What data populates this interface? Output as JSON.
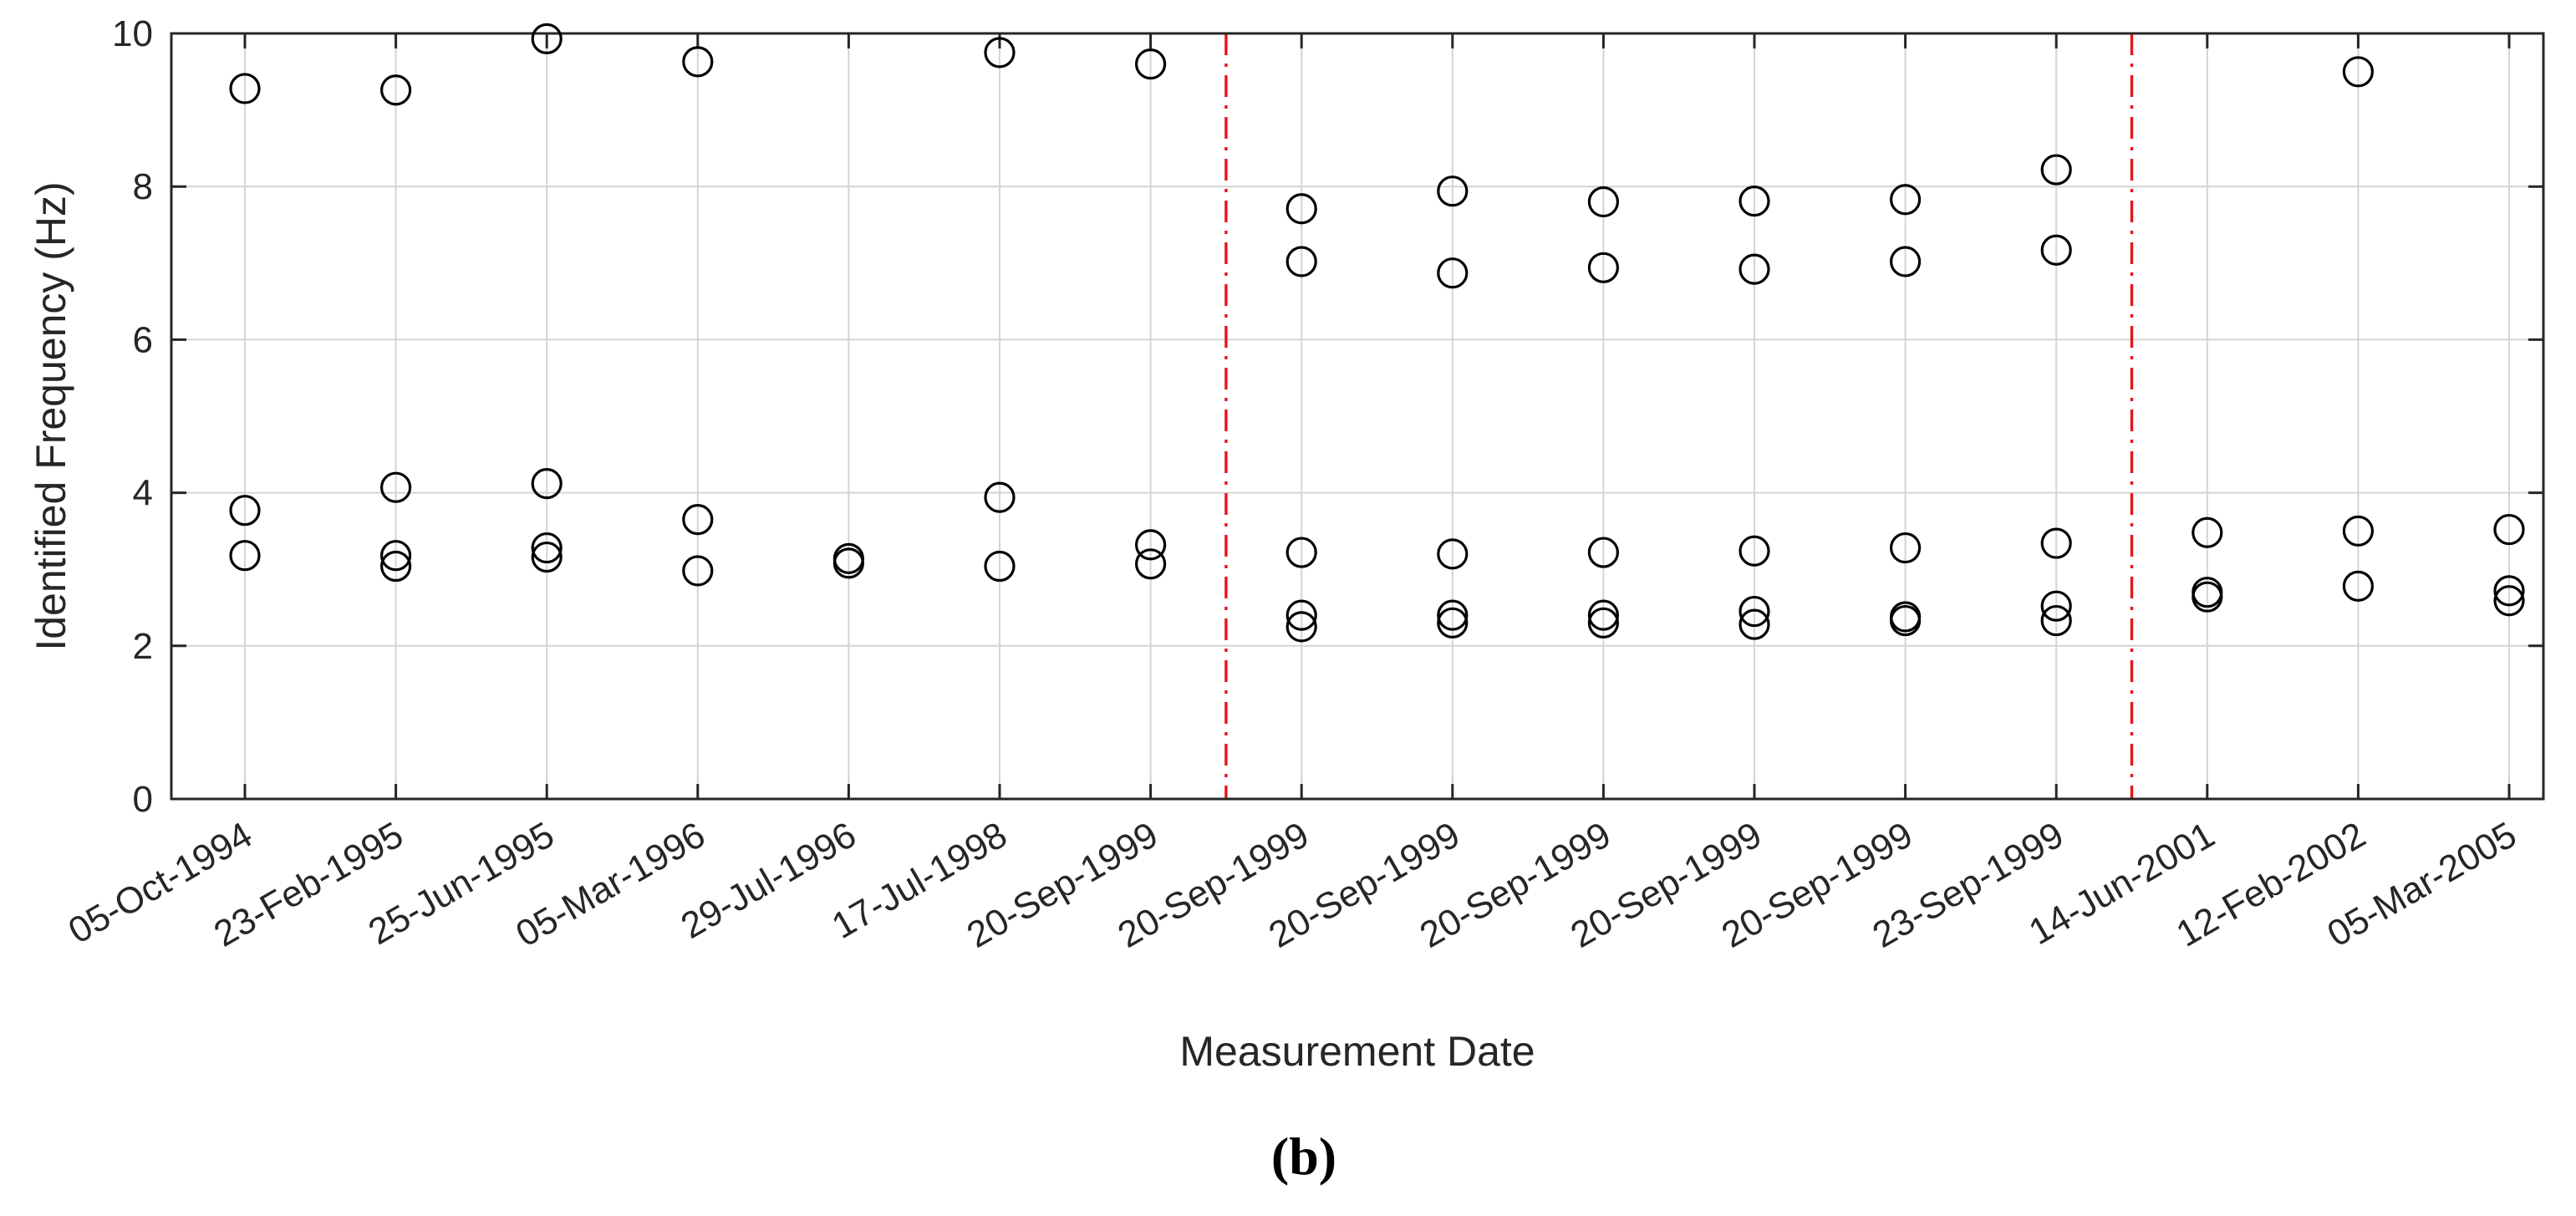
{
  "chart_data": {
    "type": "scatter",
    "panel_label": "(b)",
    "xlabel": "Measurement Date",
    "ylabel": "Identified Frequency (Hz)",
    "ylim": [
      0,
      10
    ],
    "yticks": [
      0,
      2,
      4,
      6,
      8,
      10
    ],
    "grid": true,
    "marker": "open-circle",
    "categories": [
      "05-Oct-1994",
      "23-Feb-1995",
      "25-Jun-1995",
      "05-Mar-1996",
      "29-Jul-1996",
      "17-Jul-1998",
      "20-Sep-1999",
      "20-Sep-1999",
      "20-Sep-1999",
      "20-Sep-1999",
      "20-Sep-1999",
      "20-Sep-1999",
      "23-Sep-1999",
      "14-Jun-2001",
      "12-Feb-2002",
      "05-Mar-2005"
    ],
    "points": [
      {
        "x": "05-Oct-1994",
        "y": [
          3.18,
          3.77,
          9.28
        ]
      },
      {
        "x": "23-Feb-1995",
        "y": [
          3.04,
          3.18,
          4.07,
          9.26
        ]
      },
      {
        "x": "25-Jun-1995",
        "y": [
          3.16,
          3.28,
          4.12,
          9.93
        ]
      },
      {
        "x": "05-Mar-1996",
        "y": [
          2.98,
          3.65,
          9.63
        ]
      },
      {
        "x": "29-Jul-1996",
        "y": [
          3.08,
          3.14
        ]
      },
      {
        "x": "17-Jul-1998",
        "y": [
          3.04,
          3.94,
          9.75
        ]
      },
      {
        "x": "20-Sep-1999",
        "y": [
          3.07,
          3.32,
          9.6
        ]
      },
      {
        "x": "20-Sep-1999",
        "y": [
          2.25,
          2.4,
          3.22,
          7.02,
          7.71
        ]
      },
      {
        "x": "20-Sep-1999",
        "y": [
          2.3,
          2.4,
          3.2,
          6.87,
          7.94
        ]
      },
      {
        "x": "20-Sep-1999",
        "y": [
          2.3,
          2.4,
          3.22,
          6.94,
          7.8
        ]
      },
      {
        "x": "20-Sep-1999",
        "y": [
          2.28,
          2.45,
          3.24,
          6.92,
          7.81
        ]
      },
      {
        "x": "20-Sep-1999",
        "y": [
          2.33,
          2.38,
          3.28,
          7.02,
          7.83
        ]
      },
      {
        "x": "23-Sep-1999",
        "y": [
          2.33,
          2.52,
          3.34,
          7.17,
          8.22
        ]
      },
      {
        "x": "14-Jun-2001",
        "y": [
          2.64,
          2.7,
          3.48
        ]
      },
      {
        "x": "12-Feb-2002",
        "y": [
          2.78,
          3.5,
          9.5
        ]
      },
      {
        "x": "05-Mar-2005",
        "y": [
          2.59,
          2.72,
          3.52
        ]
      }
    ],
    "dividers": [
      {
        "after_index": 6,
        "color": "#e8141a",
        "style": "dash-dot"
      },
      {
        "after_index": 12,
        "color": "#e8141a",
        "style": "dash-dot"
      }
    ]
  }
}
